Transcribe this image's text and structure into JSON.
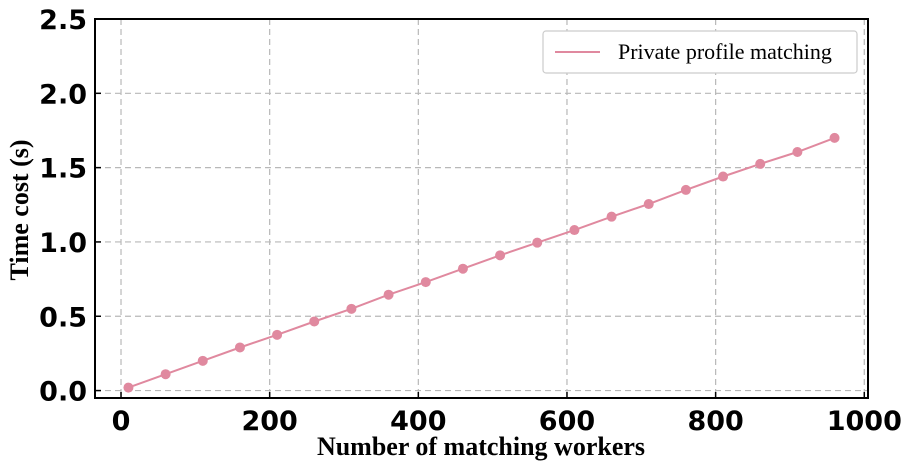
{
  "chart_data": {
    "type": "line",
    "x": [
      10,
      60,
      110,
      160,
      210,
      260,
      310,
      360,
      410,
      460,
      510,
      560,
      610,
      660,
      710,
      760,
      810,
      860,
      910,
      960
    ],
    "series": [
      {
        "name": "Private profile matching",
        "color": "#e0899f",
        "values": [
          0.02,
          0.11,
          0.2,
          0.29,
          0.375,
          0.465,
          0.55,
          0.645,
          0.73,
          0.82,
          0.91,
          0.995,
          1.08,
          1.17,
          1.255,
          1.35,
          1.44,
          1.525,
          1.605,
          1.7
        ]
      }
    ],
    "xlabel": "Number of matching workers",
    "ylabel": "Time cost (s)",
    "xlim": [
      -35,
      1005
    ],
    "ylim": [
      -0.05,
      2.5
    ],
    "xticks": [
      0,
      200,
      400,
      600,
      800,
      1000
    ],
    "xtick_labels": [
      "0",
      "200",
      "400",
      "600",
      "800",
      "1000"
    ],
    "yticks": [
      0.0,
      0.5,
      1.0,
      1.5,
      2.0,
      2.5
    ],
    "ytick_labels": [
      "0.0",
      "0.5",
      "1.0",
      "1.5",
      "2.0",
      "2.5"
    ],
    "grid": true,
    "legend_position": "top-right",
    "marker": "circle"
  }
}
